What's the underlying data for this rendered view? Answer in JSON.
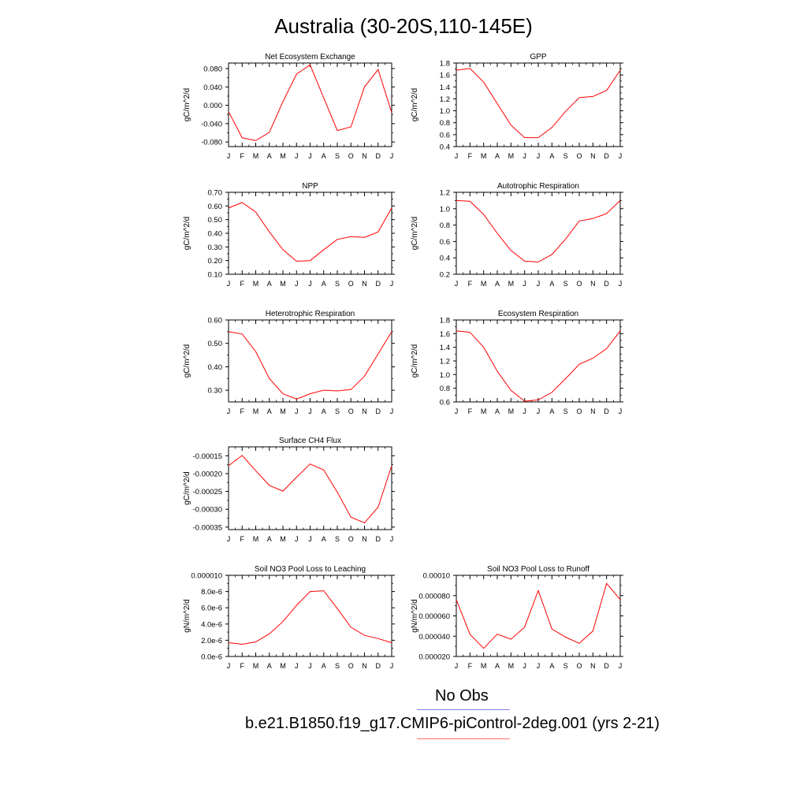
{
  "title": "Australia (30-20S,110-145E)",
  "legend": {
    "obs_label": "No Obs",
    "obs_color": "#8080ff",
    "model_label": "b.e21.B1850.f19_g17.CMIP6-piControl-2deg.001 (yrs 2-21)",
    "model_color": "#ff0000"
  },
  "chart_data": [
    {
      "type": "line",
      "title": "Net Ecosystem Exchange",
      "ylabel": "gC/m^2/d",
      "x": [
        "J",
        "F",
        "M",
        "A",
        "M",
        "J",
        "J",
        "A",
        "S",
        "O",
        "N",
        "D",
        "J"
      ],
      "ylim": [
        -0.09,
        0.092
      ],
      "yticks": [
        -0.08,
        -0.04,
        0.0,
        0.04,
        0.08
      ],
      "ytick_labels": [
        "-0.080",
        "-0.040",
        "0.000",
        "0.040",
        "0.080"
      ],
      "series": [
        {
          "values": [
            -0.014,
            -0.071,
            -0.077,
            -0.059,
            0.008,
            0.068,
            0.088,
            0.016,
            -0.055,
            -0.047,
            0.04,
            0.078,
            -0.016
          ]
        }
      ]
    },
    {
      "type": "line",
      "title": "GPP",
      "ylabel": "gC/m^2/d",
      "x": [
        "J",
        "F",
        "M",
        "A",
        "M",
        "J",
        "J",
        "A",
        "S",
        "O",
        "N",
        "D",
        "J"
      ],
      "ylim": [
        0.4,
        1.8
      ],
      "yticks": [
        0.4,
        0.6,
        0.8,
        1.0,
        1.2,
        1.4,
        1.6,
        1.8
      ],
      "ytick_labels": [
        "0.4",
        "0.6",
        "0.8",
        "1.0",
        "1.2",
        "1.4",
        "1.6",
        "1.8"
      ],
      "series": [
        {
          "values": [
            1.68,
            1.71,
            1.48,
            1.12,
            0.76,
            0.55,
            0.55,
            0.72,
            0.99,
            1.22,
            1.24,
            1.34,
            1.68
          ]
        }
      ]
    },
    {
      "type": "line",
      "title": "NPP",
      "ylabel": "gC/m^2/d",
      "x": [
        "J",
        "F",
        "M",
        "A",
        "M",
        "J",
        "J",
        "A",
        "S",
        "O",
        "N",
        "D",
        "J"
      ],
      "ylim": [
        0.1,
        0.7
      ],
      "yticks": [
        0.1,
        0.2,
        0.3,
        0.4,
        0.5,
        0.6,
        0.7
      ],
      "ytick_labels": [
        "0.10",
        "0.20",
        "0.30",
        "0.40",
        "0.50",
        "0.60",
        "0.70"
      ],
      "series": [
        {
          "values": [
            0.585,
            0.625,
            0.555,
            0.41,
            0.28,
            0.195,
            0.2,
            0.28,
            0.355,
            0.375,
            0.37,
            0.41,
            0.585
          ]
        }
      ]
    },
    {
      "type": "line",
      "title": "Autotrophic Respiration",
      "ylabel": "gC/m^2/d",
      "x": [
        "J",
        "F",
        "M",
        "A",
        "M",
        "J",
        "J",
        "A",
        "S",
        "O",
        "N",
        "D",
        "J"
      ],
      "ylim": [
        0.2,
        1.2
      ],
      "yticks": [
        0.2,
        0.4,
        0.6,
        0.8,
        1.0,
        1.2
      ],
      "ytick_labels": [
        "0.2",
        "0.4",
        "0.6",
        "0.8",
        "1.0",
        "1.2"
      ],
      "series": [
        {
          "values": [
            1.1,
            1.09,
            0.93,
            0.7,
            0.49,
            0.36,
            0.35,
            0.44,
            0.63,
            0.85,
            0.88,
            0.94,
            1.1
          ]
        }
      ]
    },
    {
      "type": "line",
      "title": "Heterotrophic Respiration",
      "ylabel": "gC/m^2/d",
      "x": [
        "J",
        "F",
        "M",
        "A",
        "M",
        "J",
        "J",
        "A",
        "S",
        "O",
        "N",
        "D",
        "J"
      ],
      "ylim": [
        0.25,
        0.6
      ],
      "yticks": [
        0.3,
        0.4,
        0.5,
        0.6
      ],
      "ytick_labels": [
        "0.30",
        "0.40",
        "0.50",
        "0.60"
      ],
      "series": [
        {
          "values": [
            0.55,
            0.54,
            0.465,
            0.35,
            0.285,
            0.262,
            0.285,
            0.3,
            0.297,
            0.303,
            0.36,
            0.455,
            0.55
          ]
        }
      ]
    },
    {
      "type": "line",
      "title": "Ecosystem Respiration",
      "ylabel": "gC/m^2/d",
      "x": [
        "J",
        "F",
        "M",
        "A",
        "M",
        "J",
        "J",
        "A",
        "S",
        "O",
        "N",
        "D",
        "J"
      ],
      "ylim": [
        0.6,
        1.8
      ],
      "yticks": [
        0.6,
        0.8,
        1.0,
        1.2,
        1.4,
        1.6,
        1.8
      ],
      "ytick_labels": [
        "0.6",
        "0.8",
        "1.0",
        "1.2",
        "1.4",
        "1.6",
        "1.8"
      ],
      "series": [
        {
          "values": [
            1.64,
            1.62,
            1.4,
            1.05,
            0.77,
            0.61,
            0.63,
            0.74,
            0.94,
            1.15,
            1.24,
            1.38,
            1.64
          ]
        }
      ]
    },
    {
      "type": "line",
      "title": "Surface CH4 Flux",
      "ylabel": "gC/m^2/d",
      "x": [
        "J",
        "F",
        "M",
        "A",
        "M",
        "J",
        "J",
        "A",
        "S",
        "O",
        "N",
        "D",
        "J"
      ],
      "ylim": [
        -0.000357,
        -0.000125
      ],
      "yticks": [
        -0.00035,
        -0.0003,
        -0.00025,
        -0.0002,
        -0.00015
      ],
      "ytick_labels": [
        "-0.00035",
        "-0.00030",
        "-0.00025",
        "-0.00020",
        "-0.00015"
      ],
      "series": [
        {
          "values": [
            -0.000178,
            -0.000149,
            -0.000192,
            -0.000233,
            -0.000249,
            -0.00021,
            -0.000173,
            -0.00019,
            -0.000252,
            -0.000322,
            -0.000338,
            -0.000294,
            -0.000178
          ]
        }
      ]
    },
    {
      "type": "line",
      "title": "Soil NO3 Pool Loss to Leaching",
      "ylabel": "gN/m^2/d",
      "x": [
        "J",
        "F",
        "M",
        "A",
        "M",
        "J",
        "J",
        "A",
        "S",
        "O",
        "N",
        "D",
        "J"
      ],
      "ylim": [
        0.0,
        1e-05
      ],
      "yticks": [
        0.0,
        2e-06,
        4e-06,
        6e-06,
        8e-06,
        1e-05
      ],
      "ytick_labels": [
        "0.0e-6",
        "2.0e-6",
        "4.0e-6",
        "6.0e-6",
        "8.0e-6",
        "0.000010"
      ],
      "series": [
        {
          "values": [
            1.7e-06,
            1.5e-06,
            1.8e-06,
            2.8e-06,
            4.3e-06,
            6.3e-06,
            8e-06,
            8.1e-06,
            5.9e-06,
            3.6e-06,
            2.6e-06,
            2.2e-06,
            1.7e-06
          ]
        }
      ]
    },
    {
      "type": "line",
      "title": "Soil NO3 Pool Loss to Runoff",
      "ylabel": "gN/m^2/d",
      "x": [
        "J",
        "F",
        "M",
        "A",
        "M",
        "J",
        "J",
        "A",
        "S",
        "O",
        "N",
        "D",
        "J"
      ],
      "ylim": [
        2e-05,
        0.0001
      ],
      "yticks": [
        2e-05,
        4e-05,
        6e-05,
        8e-05,
        0.0001
      ],
      "ytick_labels": [
        "0.000020",
        "0.000040",
        "0.000060",
        "0.000080",
        "0.00010"
      ],
      "series": [
        {
          "values": [
            7.6e-05,
            4.2e-05,
            2.8e-05,
            4.2e-05,
            3.7e-05,
            4.9e-05,
            8.5e-05,
            4.7e-05,
            3.9e-05,
            3.3e-05,
            4.5e-05,
            9.2e-05,
            7.6e-05
          ]
        }
      ]
    }
  ]
}
